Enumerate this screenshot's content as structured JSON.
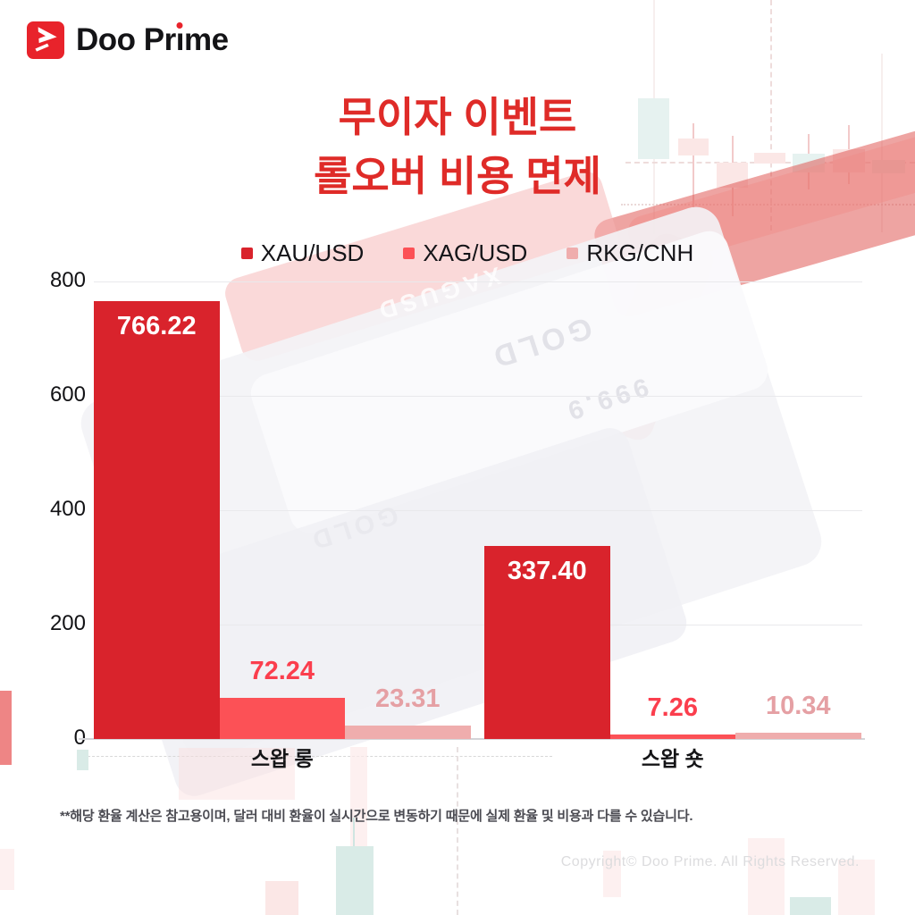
{
  "brand": {
    "logo_text": "Doo Prime"
  },
  "title": {
    "line1": "무이자 이벤트",
    "line2": "롤오버 비용 면제"
  },
  "legend": [
    {
      "label": "XAU/USD",
      "color": "#d9232c"
    },
    {
      "label": "XAG/USD",
      "color": "#fc5156"
    },
    {
      "label": "RKG/CNH",
      "color": "#efadad"
    }
  ],
  "chart_data": {
    "type": "bar",
    "title": "무이자 이벤트 롤오버 비용 면제",
    "categories": [
      "스왑 롱",
      "스왑 숏"
    ],
    "series": [
      {
        "name": "XAU/USD",
        "color": "#d9232c",
        "label_color": "#ffffff",
        "values": [
          766.22,
          337.4
        ]
      },
      {
        "name": "XAG/USD",
        "color": "#fc5156",
        "label_color": "#fb3e4d",
        "values": [
          72.24,
          7.26
        ]
      },
      {
        "name": "RKG/CNH",
        "color": "#efadad",
        "label_color": "#e5a0a4",
        "values": [
          23.31,
          10.34
        ]
      }
    ],
    "ylim": [
      0,
      800
    ],
    "yticks": [
      0,
      200,
      400,
      600,
      800
    ],
    "grid": true,
    "legend_position": "top",
    "value_labels": true
  },
  "background": {
    "watermark_texts": [
      "XAGUSD",
      "GOLD",
      "999.9"
    ]
  },
  "footnote": "**해당 환율 계산은 참고용이며, 달러 대비 환율이 실시간으로 변동하기 때문에 실제 환율 및 비용과 다를 수 있습니다.",
  "copyright": "Copyright© Doo Prime. All Rights Reserved."
}
